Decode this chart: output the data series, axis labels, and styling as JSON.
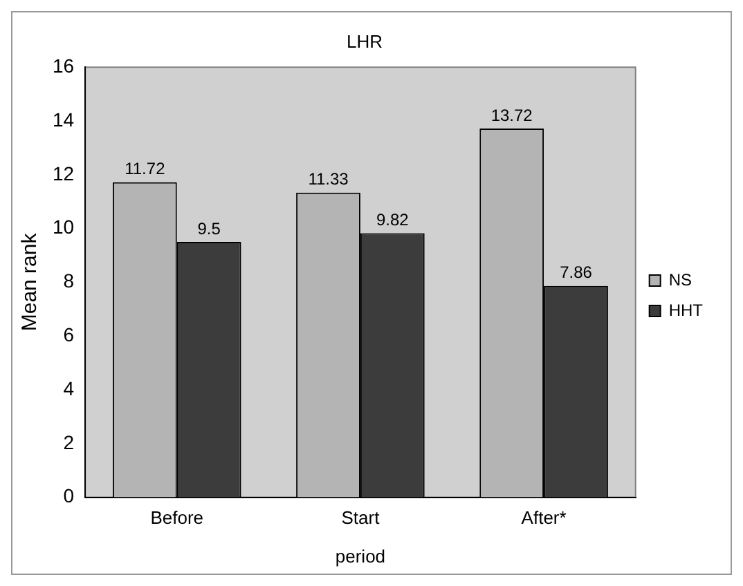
{
  "chart_data": {
    "type": "bar",
    "title": "LHR",
    "xlabel": "period",
    "ylabel": "Mean rank",
    "categories": [
      "Before",
      "Start",
      "After*"
    ],
    "series": [
      {
        "name": "NS",
        "color": "#b4b4b4",
        "values": [
          11.72,
          11.33,
          13.72
        ]
      },
      {
        "name": "HHT",
        "color": "#3c3c3c",
        "values": [
          9.5,
          9.82,
          7.86
        ]
      }
    ],
    "ylim": [
      0,
      16
    ],
    "yticks": [
      0,
      2,
      4,
      6,
      8,
      10,
      12,
      14,
      16
    ],
    "grid": false,
    "legend": "right",
    "data_labels": true
  }
}
